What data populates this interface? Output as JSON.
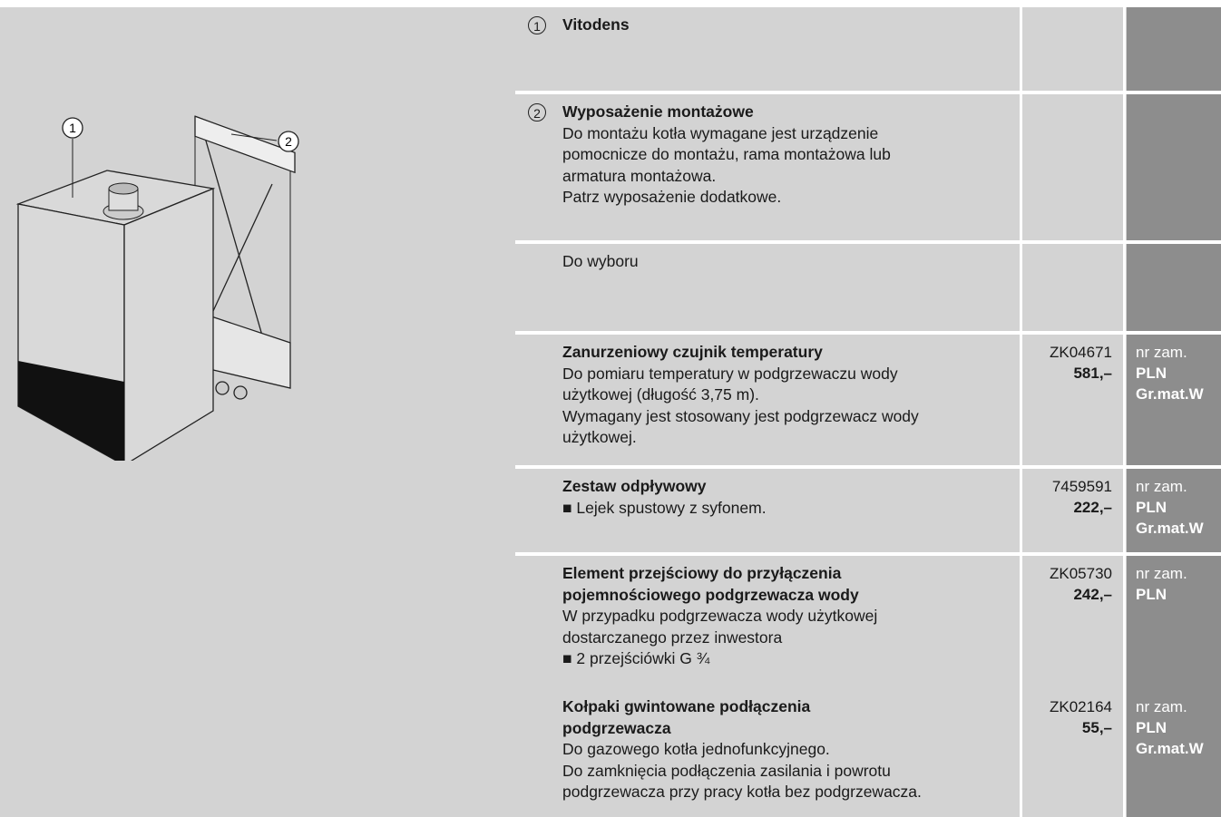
{
  "illustration": {
    "callouts": [
      "1",
      "2"
    ]
  },
  "rows": [
    {
      "marker": "1",
      "title": [
        "Vitodens"
      ],
      "description": []
    },
    {
      "marker": "2",
      "title": [
        "Wyposażenie montażowe"
      ],
      "description": [
        "Do montażu kotła wymagane jest urządzenie",
        "pomocnicze do montażu, rama montażowa lub",
        "armatura montażowa.",
        "Patrz wyposażenie dodatkowe."
      ]
    },
    {
      "title": [],
      "description": [
        "Do wyboru"
      ]
    },
    {
      "title": [
        "Zanurzeniowy czujnik temperatury"
      ],
      "description": [
        "Do pomiaru temperatury w podgrzewaczu wody",
        "użytkowej (długość 3,75 m).",
        "Wymagany jest stosowany jest podgrzewacz wody",
        "użytkowej."
      ],
      "code": "ZK04671",
      "price": "581,–",
      "labels": [
        "nr zam.",
        "PLN",
        "Gr.mat.W"
      ]
    },
    {
      "title": [
        "Zestaw odpływowy"
      ],
      "description": [
        "■ Lejek spustowy z syfonem."
      ],
      "code": "7459591",
      "price": "222,–",
      "labels": [
        "nr zam.",
        "PLN",
        "Gr.mat.W"
      ]
    },
    {
      "title": [
        "Element przejściowy do przyłączenia",
        "pojemnościowego podgrzewacza wody"
      ],
      "description": [
        "W przypadku podgrzewacza wody użytkowej",
        "dostarczanego przez inwestora",
        "■ 2 przejściówki G ¾"
      ],
      "code": "ZK05730",
      "price": "242,–",
      "labels": [
        "nr zam.",
        "PLN"
      ]
    },
    {
      "title": [
        "Kołpaki gwintowane podłączenia",
        "podgrzewacza"
      ],
      "description": [
        "Do gazowego kotła jednofunkcyjnego.",
        "Do zamknięcia podłączenia zasilania i powrotu",
        "podgrzewacza przy pracy kotła bez podgrzewacza."
      ],
      "code": "ZK02164",
      "price": "55,–",
      "labels": [
        "nr zam.",
        "PLN",
        "Gr.mat.W"
      ]
    }
  ]
}
